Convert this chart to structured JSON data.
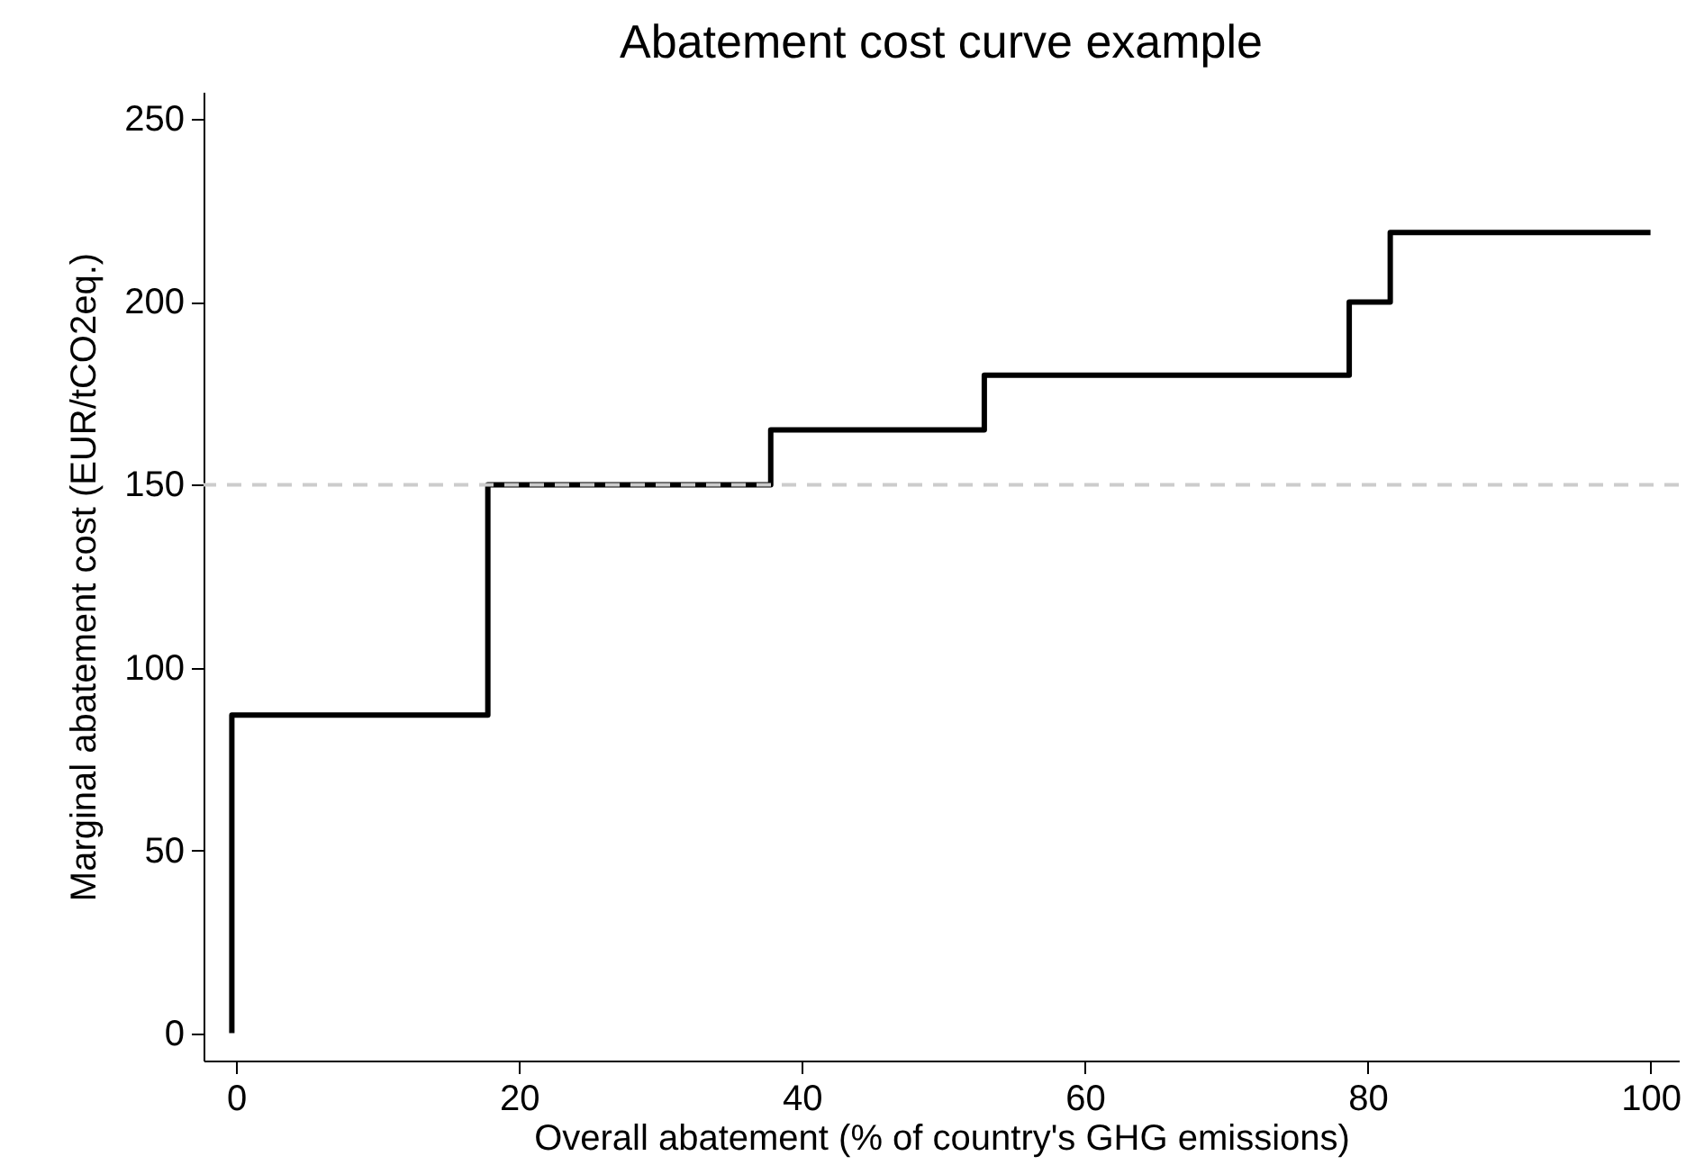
{
  "chart_data": {
    "type": "step",
    "title": "Abatement cost curve example",
    "xlabel": "Overall abatement (% of country's GHG emissions)",
    "ylabel": "Marginal abatement cost (EUR/tCO2eq.)",
    "x": [
      -0.3,
      -0.3,
      17.8,
      37.8,
      52.9,
      78.7,
      81.6,
      100
    ],
    "series": [
      {
        "color": "#000000",
        "values": [
          0,
          87,
          150,
          165,
          180,
          200,
          219,
          219
        ]
      }
    ],
    "xlim": [
      -2.3,
      102
    ],
    "xticks": [
      0,
      20,
      40,
      60,
      80,
      100
    ],
    "ylim": [
      -7.5,
      257.5
    ],
    "yticks": [
      0,
      50,
      100,
      150,
      200,
      250
    ],
    "ref_lines": [
      {
        "axis": "y",
        "value": 150,
        "color": "#cccccc",
        "line_style": "dashed"
      }
    ],
    "line_style": "solid",
    "marker": "none"
  }
}
